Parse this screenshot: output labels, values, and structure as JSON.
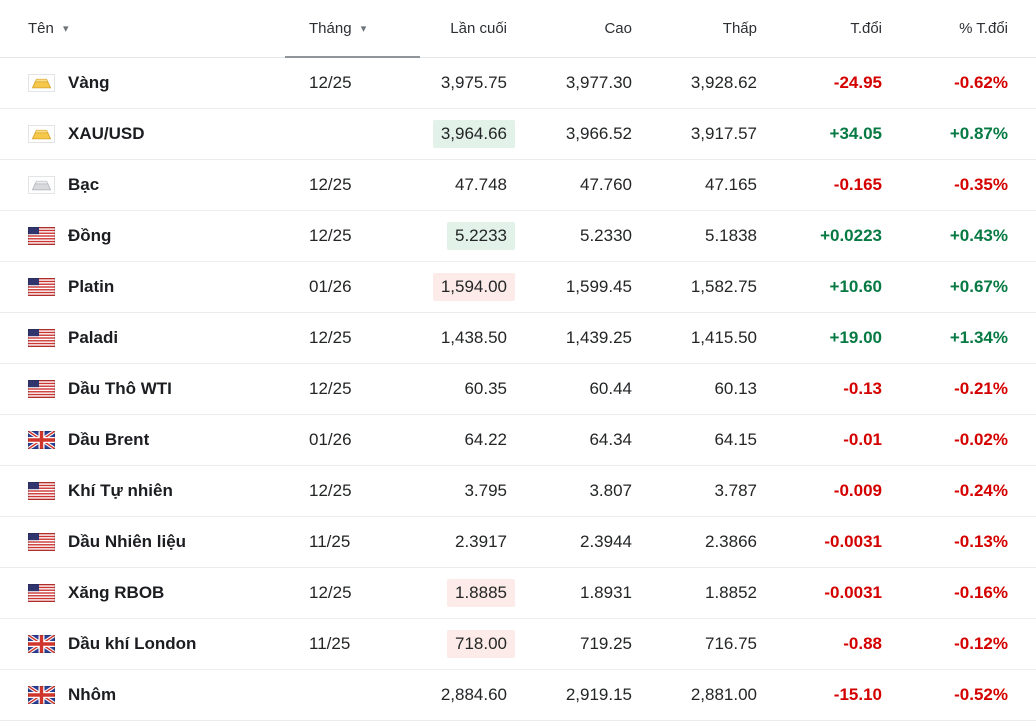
{
  "colors": {
    "positive": "#077a43",
    "negative": "#d40000",
    "flash_positive_bg": "#e2f2e9",
    "flash_negative_bg": "#fcebe8"
  },
  "table": {
    "columns": [
      {
        "key": "name",
        "label": "Tên",
        "sortable": true
      },
      {
        "key": "month",
        "label": "Tháng",
        "sortable": true
      },
      {
        "key": "last",
        "label": "Lần cuối",
        "sortable": false
      },
      {
        "key": "high",
        "label": "Cao",
        "sortable": false
      },
      {
        "key": "low",
        "label": "Thấp",
        "sortable": false
      },
      {
        "key": "change",
        "label": "T.đổi",
        "sortable": false
      },
      {
        "key": "change_pct",
        "label": "% T.đổi",
        "sortable": false
      }
    ],
    "rows": [
      {
        "name": "Vàng",
        "icon": "gold",
        "month": "12/25",
        "last": "3,975.75",
        "high": "3,977.30",
        "low": "3,928.62",
        "change": "-24.95",
        "change_pct": "-0.62%",
        "direction": "down",
        "flash": ""
      },
      {
        "name": "XAU/USD",
        "icon": "gold",
        "month": "",
        "last": "3,964.66",
        "high": "3,966.52",
        "low": "3,917.57",
        "change": "+34.05",
        "change_pct": "+0.87%",
        "direction": "up",
        "flash": "up"
      },
      {
        "name": "Bạc",
        "icon": "silver",
        "month": "12/25",
        "last": "47.748",
        "high": "47.760",
        "low": "47.165",
        "change": "-0.165",
        "change_pct": "-0.35%",
        "direction": "down",
        "flash": ""
      },
      {
        "name": "Đồng",
        "icon": "us-flag",
        "month": "12/25",
        "last": "5.2233",
        "high": "5.2330",
        "low": "5.1838",
        "change": "+0.0223",
        "change_pct": "+0.43%",
        "direction": "up",
        "flash": "up"
      },
      {
        "name": "Platin",
        "icon": "us-flag",
        "month": "01/26",
        "last": "1,594.00",
        "high": "1,599.45",
        "low": "1,582.75",
        "change": "+10.60",
        "change_pct": "+0.67%",
        "direction": "up",
        "flash": "down"
      },
      {
        "name": "Paladi",
        "icon": "us-flag",
        "month": "12/25",
        "last": "1,438.50",
        "high": "1,439.25",
        "low": "1,415.50",
        "change": "+19.00",
        "change_pct": "+1.34%",
        "direction": "up",
        "flash": ""
      },
      {
        "name": "Dầu Thô WTI",
        "icon": "us-flag",
        "month": "12/25",
        "last": "60.35",
        "high": "60.44",
        "low": "60.13",
        "change": "-0.13",
        "change_pct": "-0.21%",
        "direction": "down",
        "flash": ""
      },
      {
        "name": "Dầu Brent",
        "icon": "uk-flag",
        "month": "01/26",
        "last": "64.22",
        "high": "64.34",
        "low": "64.15",
        "change": "-0.01",
        "change_pct": "-0.02%",
        "direction": "down",
        "flash": ""
      },
      {
        "name": "Khí Tự nhiên",
        "icon": "us-flag",
        "month": "12/25",
        "last": "3.795",
        "high": "3.807",
        "low": "3.787",
        "change": "-0.009",
        "change_pct": "-0.24%",
        "direction": "down",
        "flash": ""
      },
      {
        "name": "Dầu Nhiên liệu",
        "icon": "us-flag",
        "month": "11/25",
        "last": "2.3917",
        "high": "2.3944",
        "low": "2.3866",
        "change": "-0.0031",
        "change_pct": "-0.13%",
        "direction": "down",
        "flash": ""
      },
      {
        "name": "Xăng RBOB",
        "icon": "us-flag",
        "month": "12/25",
        "last": "1.8885",
        "high": "1.8931",
        "low": "1.8852",
        "change": "-0.0031",
        "change_pct": "-0.16%",
        "direction": "down",
        "flash": "down"
      },
      {
        "name": "Dầu khí London",
        "icon": "uk-flag",
        "month": "11/25",
        "last": "718.00",
        "high": "719.25",
        "low": "716.75",
        "change": "-0.88",
        "change_pct": "-0.12%",
        "direction": "down",
        "flash": "down"
      },
      {
        "name": "Nhôm",
        "icon": "uk-flag",
        "month": "",
        "last": "2,884.60",
        "high": "2,919.15",
        "low": "2,881.00",
        "change": "-15.10",
        "change_pct": "-0.52%",
        "direction": "down",
        "flash": ""
      }
    ]
  }
}
